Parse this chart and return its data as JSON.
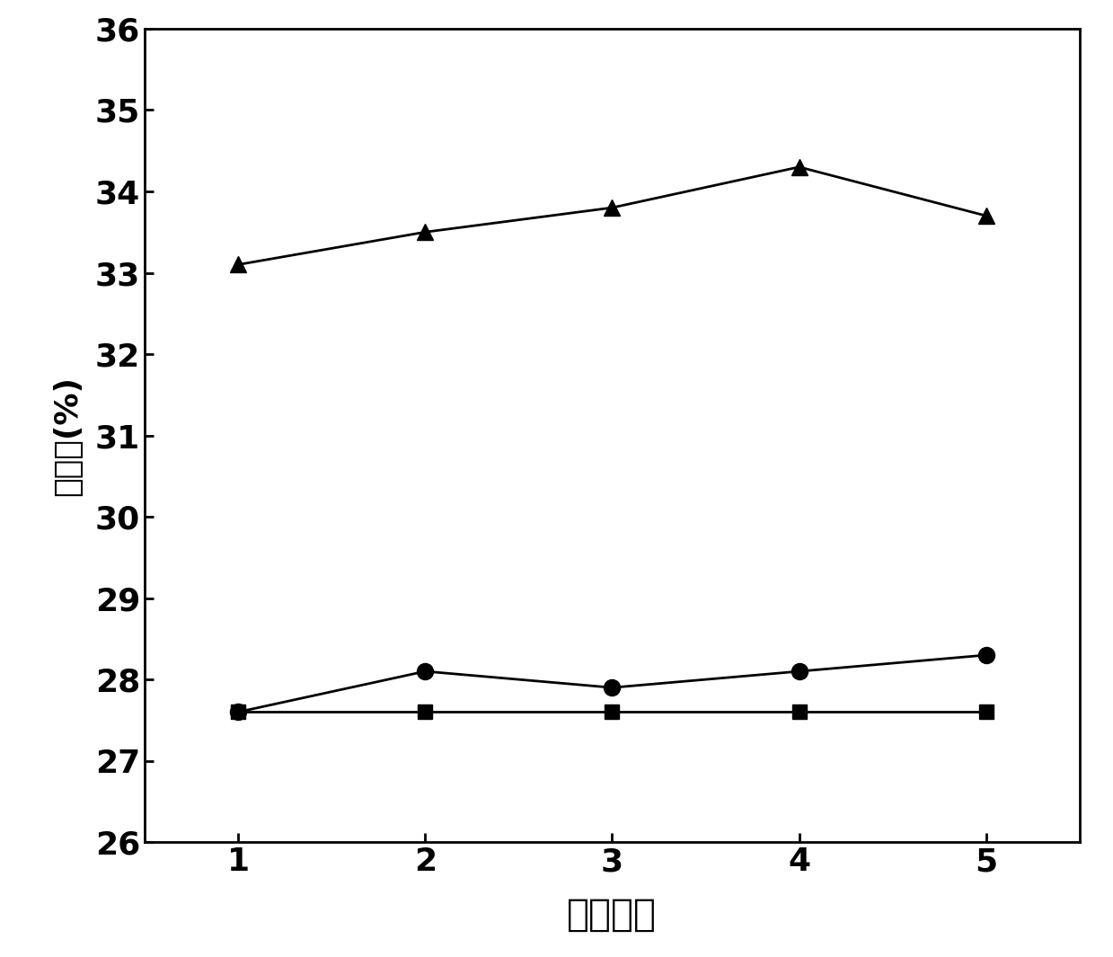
{
  "x": [
    1,
    2,
    3,
    4,
    5
  ],
  "series_triangle": [
    33.1,
    33.5,
    33.8,
    34.3,
    33.7
  ],
  "series_circle": [
    27.6,
    28.1,
    27.9,
    28.1,
    28.3
  ],
  "series_square": [
    27.6,
    27.6,
    27.6,
    27.6,
    27.6
  ],
  "color": "#000000",
  "xlabel": "样品编号",
  "ylabel": "氧指数(%)",
  "ylim": [
    26,
    36
  ],
  "xlim": [
    0.5,
    5.5
  ],
  "yticks": [
    26,
    27,
    28,
    29,
    30,
    31,
    32,
    33,
    34,
    35,
    36
  ],
  "xticks": [
    1,
    2,
    3,
    4,
    5
  ],
  "linewidth": 2.0,
  "markersize_triangle": 13,
  "markersize_circle": 13,
  "markersize_square": 11,
  "xlabel_fontsize": 30,
  "ylabel_fontsize": 26,
  "tick_fontsize": 26,
  "background_color": "#ffffff"
}
